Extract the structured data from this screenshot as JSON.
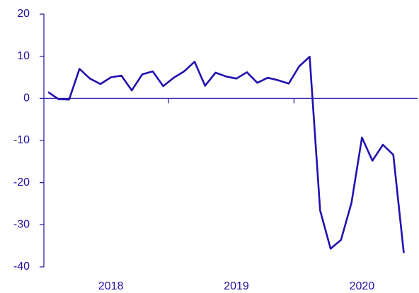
{
  "chart_data": {
    "type": "line",
    "categories": [
      null,
      null,
      null,
      null,
      null,
      null,
      null,
      null,
      null,
      null,
      null,
      null,
      null,
      null,
      null,
      null,
      null,
      null,
      null,
      null,
      null,
      null,
      null,
      null,
      null,
      null,
      null,
      null,
      null,
      null,
      null,
      null,
      null,
      null,
      null
    ],
    "year_labels": [
      "2018",
      "2019",
      "2020"
    ],
    "series": [
      {
        "color": "#2110b0",
        "values": [
          1.5,
          -0.2,
          -0.3,
          7,
          4.7,
          3.4,
          5,
          5.4,
          1.9,
          5.7,
          6.4,
          2.9,
          4.9,
          6.4,
          8.7,
          3,
          6.1,
          5.2,
          4.7,
          6.2,
          3.7,
          4.9,
          4.3,
          3.5,
          7.6,
          9.9,
          -26.6,
          -35.7,
          -33.6,
          -24.8,
          -9.3,
          -14.8,
          -11,
          -13.4,
          -36.7
        ]
      }
    ],
    "ylim": [
      -40,
      20
    ],
    "yticks": [
      -40,
      -30,
      -20,
      -10,
      0,
      10,
      20
    ]
  }
}
